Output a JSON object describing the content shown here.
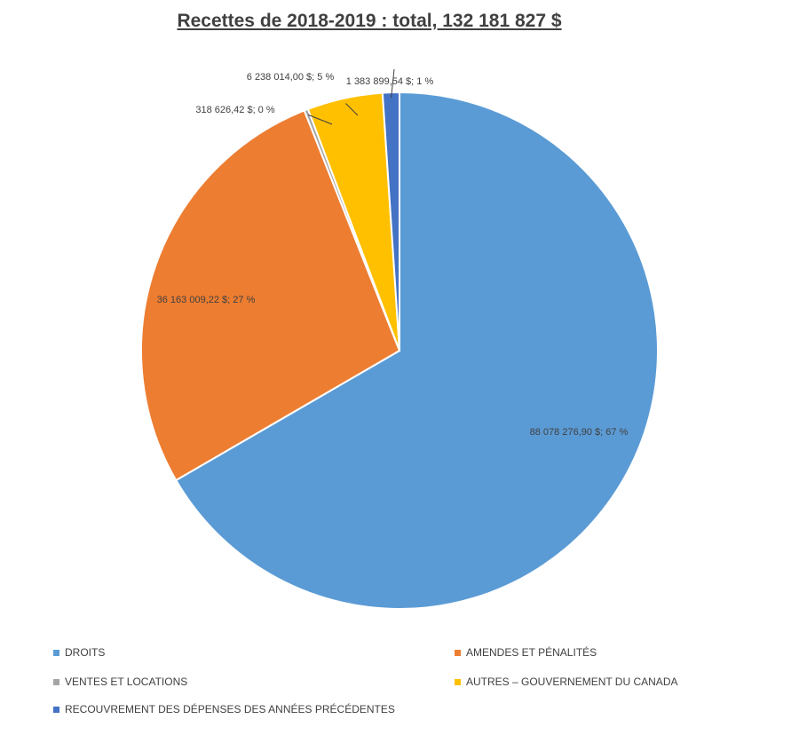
{
  "chart_data": {
    "type": "pie",
    "title": "Recettes de 2018-2019 : total, 132 181 827 $",
    "series": [
      {
        "name": "DROITS",
        "value": 88078276.9,
        "label": "88 078 276,90 $; 67 %",
        "color": "#5B9BD5"
      },
      {
        "name": "AMENDES ET PÉNALITÉS",
        "value": 36163009.22,
        "label": "36 163 009,22 $; 27 %",
        "color": "#ED7D31"
      },
      {
        "name": "VENTES ET LOCATIONS",
        "value": 318626.42,
        "label": "318 626,42 $; 0 %",
        "color": "#A5A5A5"
      },
      {
        "name": "AUTRES – GOUVERNEMENT DU CANADA",
        "value": 6238014.0,
        "label": "6 238 014,00 $; 5 %",
        "color": "#FFC000"
      },
      {
        "name": "RECOUVREMENT DES DÉPENSES DES ANNÉES PRÉCÉDENTES",
        "value": 1383899.54,
        "label": "1 383 899,54 $; 1 %",
        "color": "#4472C4"
      }
    ],
    "legend_position": "bottom"
  }
}
